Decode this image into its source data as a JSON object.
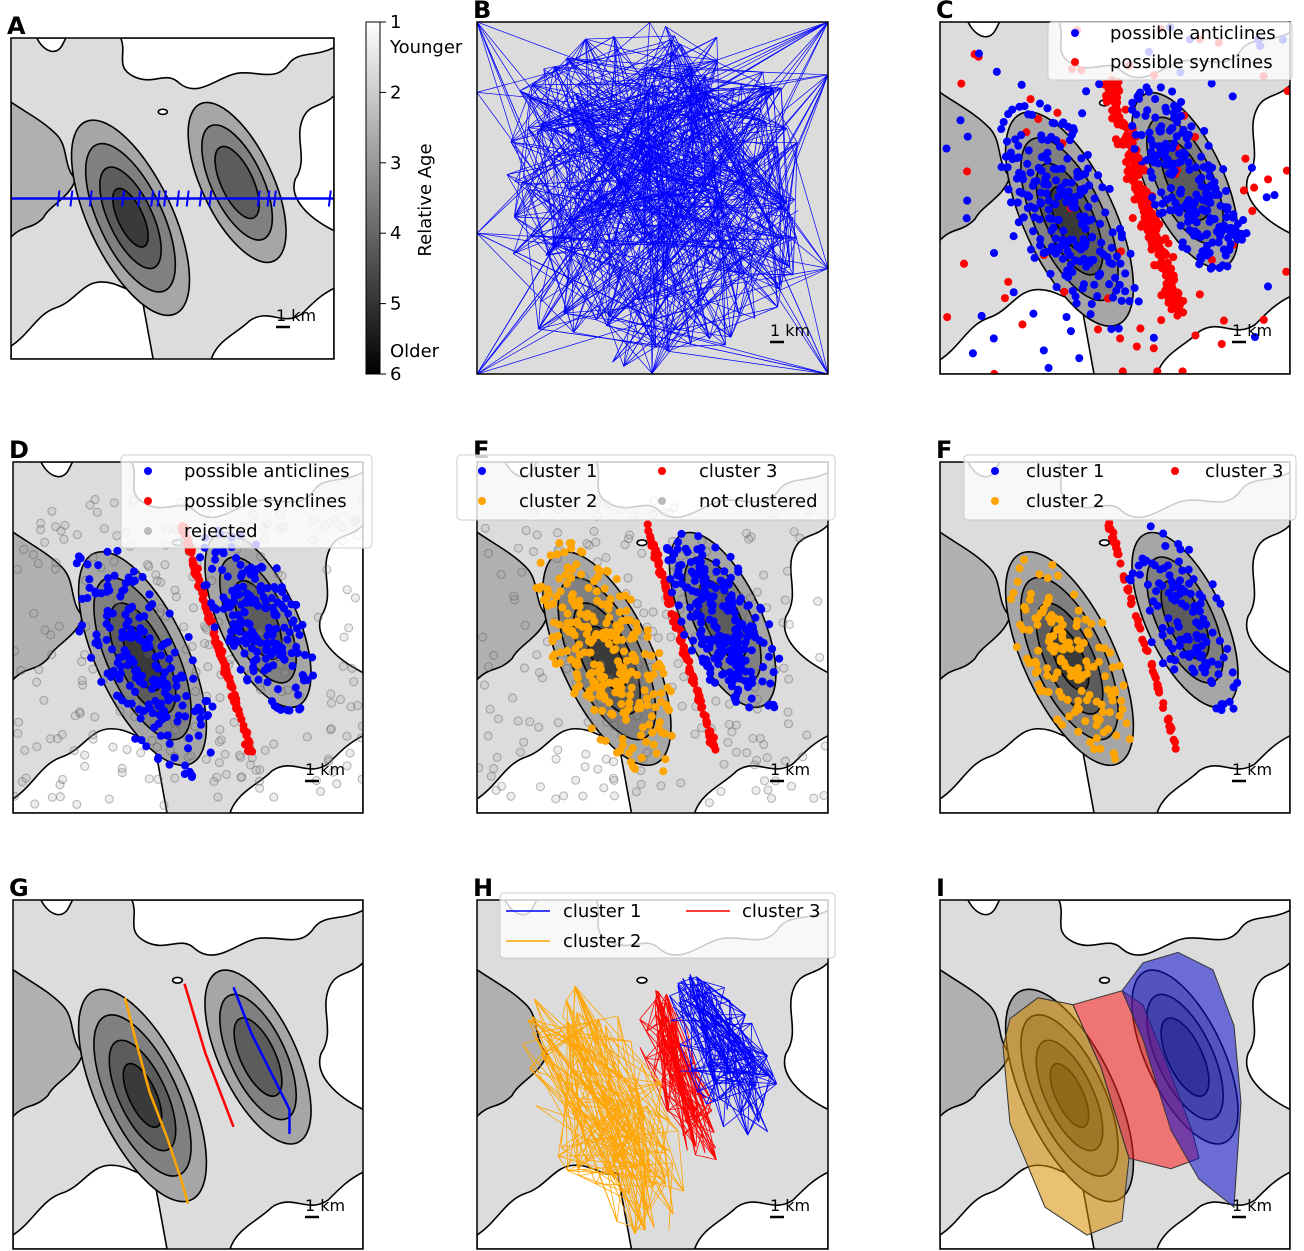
{
  "colorbar": {
    "label": "Relative Age",
    "lim": [
      1,
      6
    ],
    "ticks": [
      1,
      2,
      3,
      4,
      5,
      6
    ],
    "top_label": "Younger",
    "bottom_label": "Older"
  },
  "scale_bar": "1 km",
  "panels": [
    {
      "letter": "A"
    },
    {
      "letter": "B"
    },
    {
      "letter": "C",
      "legend": [
        {
          "name": "possible anticlines",
          "color": "#0000ff"
        },
        {
          "name": "possible synclines",
          "color": "#ff0000"
        }
      ]
    },
    {
      "letter": "D",
      "legend": [
        {
          "name": "possible anticlines",
          "color": "#0000ff"
        },
        {
          "name": "possible synclines",
          "color": "#ff0000"
        },
        {
          "name": "rejected",
          "color": "#bbbbbb"
        }
      ]
    },
    {
      "letter": "E",
      "legend_columns": 2,
      "legend": [
        {
          "name": "cluster 1",
          "color": "#0000ff"
        },
        {
          "name": "cluster 2",
          "color": "#ffa500"
        },
        {
          "name": "cluster 3",
          "color": "#ff0000"
        },
        {
          "name": "not clustered",
          "color": "#bbbbbb"
        }
      ]
    },
    {
      "letter": "F",
      "legend_columns": 2,
      "legend": [
        {
          "name": "cluster 1",
          "color": "#0000ff"
        },
        {
          "name": "cluster 2",
          "color": "#ffa500"
        },
        {
          "name": "cluster 3",
          "color": "#ff0000"
        }
      ]
    },
    {
      "letter": "G"
    },
    {
      "letter": "H",
      "legend_columns": 2,
      "legend_marker": "line",
      "legend": [
        {
          "name": "cluster 1",
          "color": "#0000ff"
        },
        {
          "name": "cluster 2",
          "color": "#ffa500"
        },
        {
          "name": "cluster 3",
          "color": "#ff0000"
        }
      ]
    },
    {
      "letter": "I"
    }
  ]
}
